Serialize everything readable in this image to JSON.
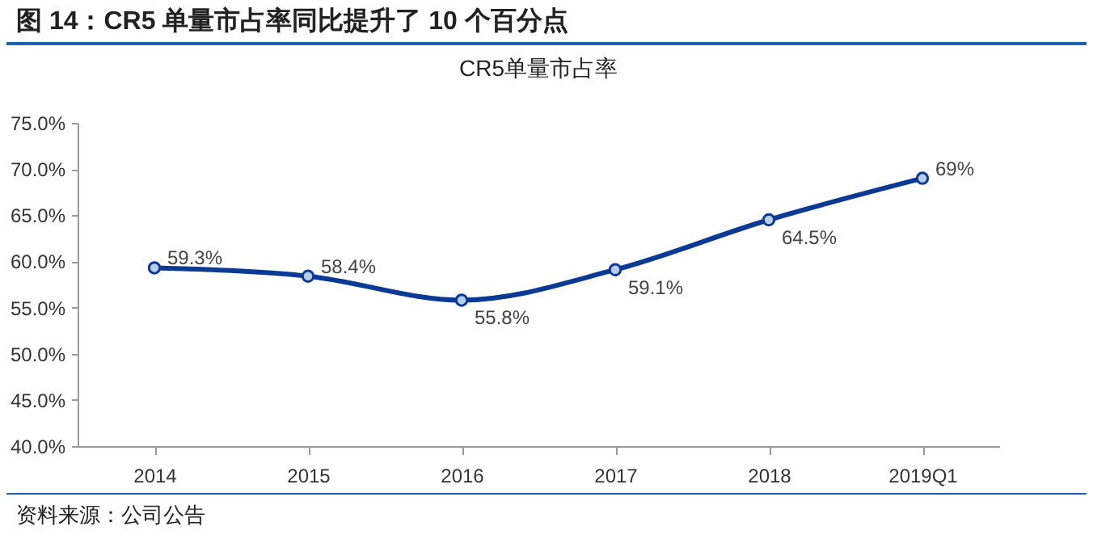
{
  "chart_data": {
    "type": "line",
    "title": "图 14：CR5 单量市占率同比提升了 10 个百分点",
    "subtitle": "CR5单量市占率",
    "categories": [
      "2014",
      "2015",
      "2016",
      "2017",
      "2018",
      "2019Q1"
    ],
    "series": [
      {
        "color": "#0b3a94",
        "values": [
          59.3,
          58.4,
          55.8,
          59.1,
          64.5,
          69
        ],
        "value_labels": [
          "59.3%",
          "58.4%",
          "55.8%",
          "59.1%",
          "64.5%",
          "69%"
        ]
      }
    ],
    "ylim": [
      40,
      75
    ],
    "yticks": [
      {
        "value": 40,
        "label": "40.0%"
      },
      {
        "value": 45,
        "label": "45.0%"
      },
      {
        "value": 50,
        "label": "50.0%"
      },
      {
        "value": 55,
        "label": "55.0%"
      },
      {
        "value": 60,
        "label": "60.0%"
      },
      {
        "value": 65,
        "label": "65.0%"
      },
      {
        "value": 70,
        "label": "70.0%"
      },
      {
        "value": 75,
        "label": "75.0%"
      }
    ],
    "marker": "circle",
    "annotations": [
      "资料来源：公司公告"
    ]
  }
}
